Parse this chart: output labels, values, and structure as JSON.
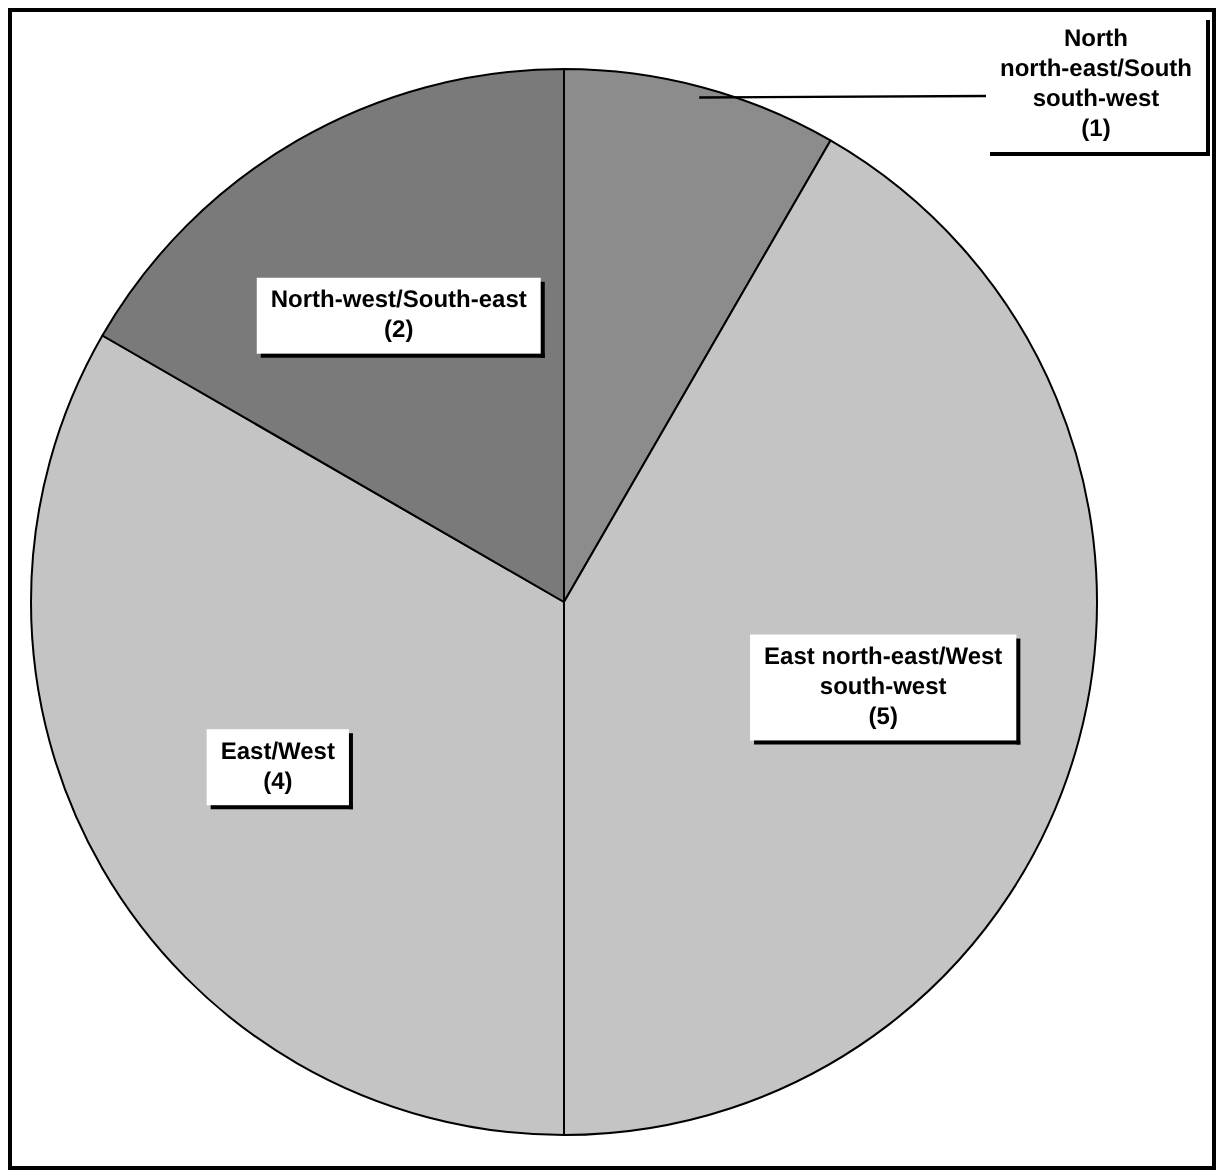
{
  "chart_data": {
    "type": "pie",
    "categories": [
      "North north-east/South south-west",
      "East north-east/West south-west",
      "East/West",
      "North-west/South-east"
    ],
    "values": [
      1,
      5,
      4,
      2
    ],
    "colors": [
      "#8c8c8c",
      "#c4c4c4",
      "#c4c4c4",
      "#7a7a7a"
    ],
    "value_labels": [
      "(1)",
      "(5)",
      "(4)",
      "(2)"
    ],
    "legend": false
  }
}
